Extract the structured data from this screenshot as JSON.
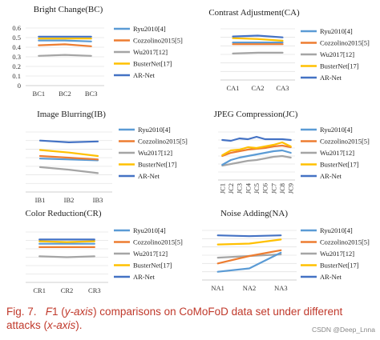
{
  "colors": {
    "Ryu2010[4]": "#5b9bd5",
    "Cozzolino2015[5]": "#ed7d31",
    "Wu2017[12]": "#a5a5a5",
    "BusterNet[17]": "#ffc000",
    "AR-Net": "#4472c4"
  },
  "caption": {
    "prefix": "Fig. 7.",
    "f": "F",
    "one": "1 (",
    "yaxis": "y-axis",
    "mid": ") comparisons on CoMoFoD data set under different attacks (",
    "xaxis": "x-axis",
    "end": ")."
  },
  "watermark": "CSDN @Deep_Lnna",
  "chart_data": [
    {
      "type": "line",
      "title": "Bright Change(BC)",
      "categories": [
        "BC1",
        "BC2",
        "BC3"
      ],
      "ylim": [
        0,
        0.6
      ],
      "yticks": [
        "0",
        "0.1",
        "0.2",
        "0.3",
        "0.4",
        "0.5",
        "0.6"
      ],
      "grid": true,
      "legend": "right",
      "series": [
        {
          "name": "Ryu2010[4]",
          "values": [
            0.47,
            0.47,
            0.46
          ]
        },
        {
          "name": "Cozzolino2015[5]",
          "values": [
            0.42,
            0.43,
            0.41
          ]
        },
        {
          "name": "Wu2017[12]",
          "values": [
            0.31,
            0.32,
            0.31
          ]
        },
        {
          "name": "BusterNet[17]",
          "values": [
            0.49,
            0.49,
            0.49
          ]
        },
        {
          "name": "AR-Net",
          "values": [
            0.51,
            0.51,
            0.51
          ]
        }
      ]
    },
    {
      "type": "line",
      "title": "Contrast Adjustment(CA)",
      "categories": [
        "CA1",
        "CA2",
        "CA3"
      ],
      "ylim": [
        0,
        0.6
      ],
      "yticks": [],
      "grid": true,
      "legend": "right",
      "series": [
        {
          "name": "Ryu2010[4]",
          "values": [
            0.44,
            0.44,
            0.44
          ]
        },
        {
          "name": "Cozzolino2015[5]",
          "values": [
            0.42,
            0.42,
            0.42
          ]
        },
        {
          "name": "Wu2017[12]",
          "values": [
            0.31,
            0.32,
            0.32
          ]
        },
        {
          "name": "BusterNet[17]",
          "values": [
            0.49,
            0.48,
            0.46
          ]
        },
        {
          "name": "AR-Net",
          "values": [
            0.51,
            0.52,
            0.5
          ]
        }
      ]
    },
    {
      "type": "line",
      "title": "Image Blurring(IB)",
      "categories": [
        "IB1",
        "IB2",
        "IB3"
      ],
      "ylim": [
        0,
        0.7
      ],
      "yticks": [],
      "grid": true,
      "legend": "right",
      "series": [
        {
          "name": "Ryu2010[4]",
          "values": [
            0.39,
            0.38,
            0.37
          ]
        },
        {
          "name": "Cozzolino2015[5]",
          "values": [
            0.42,
            0.4,
            0.38
          ]
        },
        {
          "name": "Wu2017[12]",
          "values": [
            0.29,
            0.26,
            0.22
          ]
        },
        {
          "name": "BusterNet[17]",
          "values": [
            0.49,
            0.46,
            0.42
          ]
        },
        {
          "name": "AR-Net",
          "values": [
            0.6,
            0.58,
            0.59
          ]
        }
      ]
    },
    {
      "type": "line",
      "title": "JPEG Compression(JC)",
      "categories": [
        "JC1",
        "JC2",
        "JC3",
        "JC4",
        "JC5",
        "JC6",
        "JC7",
        "JC8",
        "JC9"
      ],
      "ylim": [
        0,
        0.6
      ],
      "yticks": [],
      "grid": true,
      "legend": "right",
      "series": [
        {
          "name": "Ryu2010[4]",
          "values": [
            0.19,
            0.25,
            0.28,
            0.3,
            0.32,
            0.34,
            0.36,
            0.37,
            0.34
          ]
        },
        {
          "name": "Cozzolino2015[5]",
          "values": [
            0.3,
            0.34,
            0.36,
            0.38,
            0.39,
            0.4,
            0.42,
            0.43,
            0.41
          ]
        },
        {
          "name": "Wu2017[12]",
          "values": [
            0.18,
            0.2,
            0.22,
            0.24,
            0.25,
            0.27,
            0.29,
            0.3,
            0.28
          ]
        },
        {
          "name": "BusterNet[17]",
          "values": [
            0.31,
            0.37,
            0.38,
            0.41,
            0.4,
            0.42,
            0.44,
            0.47,
            0.42
          ]
        },
        {
          "name": "AR-Net",
          "values": [
            0.5,
            0.49,
            0.52,
            0.51,
            0.54,
            0.51,
            0.51,
            0.51,
            0.5
          ]
        }
      ]
    },
    {
      "type": "line",
      "title": "Color Reduction(CR)",
      "categories": [
        "CR1",
        "CR2",
        "CR3"
      ],
      "ylim": [
        0,
        0.6
      ],
      "yticks": [],
      "grid": true,
      "legend": "right",
      "series": [
        {
          "name": "Ryu2010[4]",
          "values": [
            0.46,
            0.46,
            0.46
          ]
        },
        {
          "name": "Cozzolino2015[5]",
          "values": [
            0.42,
            0.42,
            0.42
          ]
        },
        {
          "name": "Wu2017[12]",
          "values": [
            0.31,
            0.3,
            0.31
          ]
        },
        {
          "name": "BusterNet[17]",
          "values": [
            0.49,
            0.48,
            0.49
          ]
        },
        {
          "name": "AR-Net",
          "values": [
            0.51,
            0.51,
            0.51
          ]
        }
      ]
    },
    {
      "type": "line",
      "title": "Noise Adding(NA)",
      "categories": [
        "NA1",
        "NA2",
        "NA3"
      ],
      "ylim": [
        0,
        0.6
      ],
      "yticks": [],
      "grid": true,
      "legend": "right",
      "series": [
        {
          "name": "Ryu2010[4]",
          "values": [
            0.1,
            0.14,
            0.33
          ]
        },
        {
          "name": "Cozzolino2015[5]",
          "values": [
            0.2,
            0.29,
            0.36
          ]
        },
        {
          "name": "Wu2017[12]",
          "values": [
            0.27,
            0.29,
            0.31
          ]
        },
        {
          "name": "BusterNet[17]",
          "values": [
            0.43,
            0.44,
            0.49
          ]
        },
        {
          "name": "AR-Net",
          "values": [
            0.54,
            0.53,
            0.54
          ]
        }
      ]
    }
  ]
}
